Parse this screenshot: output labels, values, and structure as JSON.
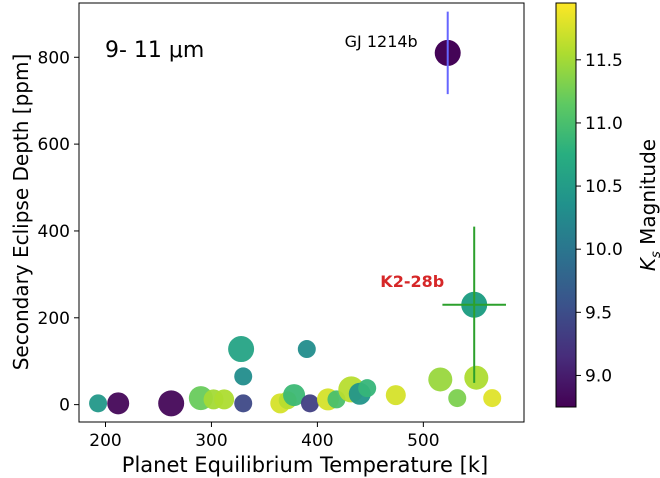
{
  "chart_data": {
    "type": "scatter",
    "title": "",
    "xlabel": "Planet Equilibrium Temperature [k]",
    "ylabel": "Secondary Eclipse Depth [ppm]",
    "xlim": [
      175,
      595
    ],
    "ylim": [
      -40,
      925
    ],
    "x_ticks": [
      200,
      300,
      400,
      500
    ],
    "y_ticks": [
      0,
      200,
      400,
      600,
      800
    ],
    "annotation": "9- 11 μm",
    "colorbar": {
      "label": "K_s Magnitude",
      "label_main": "K",
      "label_sub": "s",
      "label_rest": " Magnitude",
      "range": [
        8.75,
        11.95
      ],
      "ticks": [
        "9.0",
        "9.5",
        "10.0",
        "10.5",
        "11.0",
        "11.5"
      ],
      "colormap": "viridis"
    },
    "highlighted": [
      {
        "name": "GJ 1214b",
        "x": 523,
        "y": 810,
        "kmag": 8.78,
        "yerr": 95,
        "label_color": "#000000",
        "errbar_color": "#6666ff"
      },
      {
        "name": "K2-28b",
        "x": 548,
        "y": 230,
        "kmag": 10.55,
        "yerr": 180,
        "xerr": 30,
        "label_color": "#d62728",
        "errbar_color": "#2ca02c"
      }
    ],
    "points": [
      {
        "x": 193,
        "y": 3,
        "kmag": 10.45,
        "size": 9
      },
      {
        "x": 212,
        "y": 3,
        "kmag": 8.8,
        "size": 11
      },
      {
        "x": 262,
        "y": 3,
        "kmag": 8.8,
        "size": 13
      },
      {
        "x": 290,
        "y": 15,
        "kmag": 11.2,
        "size": 12
      },
      {
        "x": 302,
        "y": 12,
        "kmag": 11.5,
        "size": 10
      },
      {
        "x": 312,
        "y": 12,
        "kmag": 11.55,
        "size": 10
      },
      {
        "x": 328,
        "y": 128,
        "kmag": 10.6,
        "size": 13
      },
      {
        "x": 330,
        "y": 65,
        "kmag": 10.3,
        "size": 9
      },
      {
        "x": 330,
        "y": 3,
        "kmag": 9.45,
        "size": 9
      },
      {
        "x": 365,
        "y": 3,
        "kmag": 11.75,
        "size": 10
      },
      {
        "x": 372,
        "y": 10,
        "kmag": 11.6,
        "size": 9
      },
      {
        "x": 378,
        "y": 22,
        "kmag": 10.9,
        "size": 11
      },
      {
        "x": 390,
        "y": 128,
        "kmag": 10.3,
        "size": 9
      },
      {
        "x": 393,
        "y": 3,
        "kmag": 9.35,
        "size": 9
      },
      {
        "x": 410,
        "y": 12,
        "kmag": 11.75,
        "size": 11
      },
      {
        "x": 418,
        "y": 12,
        "kmag": 11.0,
        "size": 9
      },
      {
        "x": 432,
        "y": 35,
        "kmag": 11.6,
        "size": 13
      },
      {
        "x": 440,
        "y": 25,
        "kmag": 10.4,
        "size": 11
      },
      {
        "x": 447,
        "y": 38,
        "kmag": 10.85,
        "size": 9
      },
      {
        "x": 474,
        "y": 22,
        "kmag": 11.75,
        "size": 10
      },
      {
        "x": 516,
        "y": 58,
        "kmag": 11.45,
        "size": 12
      },
      {
        "x": 532,
        "y": 15,
        "kmag": 11.3,
        "size": 9
      },
      {
        "x": 550,
        "y": 62,
        "kmag": 11.55,
        "size": 12
      },
      {
        "x": 565,
        "y": 15,
        "kmag": 11.8,
        "size": 9
      }
    ]
  }
}
